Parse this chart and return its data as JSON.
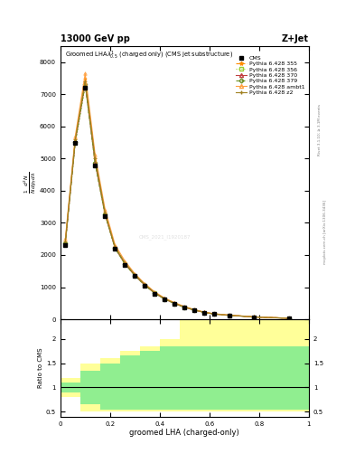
{
  "title_top": "13000 GeV pp",
  "title_right": "Z+Jet",
  "plot_title": "Groomed LHA$\\lambda^{1}_{0.5}$ (charged only) (CMS jet substructure)",
  "xlabel": "groomed LHA (charged-only)",
  "ylabel_main": "$\\frac{1}{\\sigma}\\frac{d\\sigma}{d\\lambda}$",
  "ylabel_ratio": "Ratio to CMS",
  "right_label1": "Rivet 3.1.10; ≥ 3.1M events",
  "right_label2": "mcplots.cern.ch [arXiv:1306.3436]",
  "watermark": "CMS_2021_I1920187",
  "x_bins": [
    0.0,
    0.04,
    0.08,
    0.12,
    0.16,
    0.2,
    0.24,
    0.28,
    0.32,
    0.36,
    0.4,
    0.44,
    0.48,
    0.52,
    0.56,
    0.6,
    0.64,
    0.72,
    0.84,
    1.0
  ],
  "cms_y": [
    2300,
    5500,
    7200,
    4800,
    3200,
    2200,
    1700,
    1350,
    1050,
    800,
    620,
    480,
    370,
    280,
    210,
    160,
    120,
    70,
    30
  ],
  "p355_y": [
    2400,
    5600,
    7500,
    5000,
    3300,
    2250,
    1750,
    1380,
    1080,
    830,
    640,
    500,
    380,
    290,
    215,
    165,
    125,
    72,
    31
  ],
  "p356_y": [
    2350,
    5480,
    7280,
    4840,
    3240,
    2210,
    1710,
    1355,
    1055,
    805,
    622,
    482,
    370,
    281,
    211,
    161,
    121,
    69,
    29
  ],
  "p370_y": [
    2380,
    5540,
    7340,
    4890,
    3270,
    2225,
    1725,
    1362,
    1062,
    812,
    628,
    488,
    374,
    284,
    212,
    162,
    122,
    70,
    30
  ],
  "p379_y": [
    2360,
    5510,
    7310,
    4860,
    3255,
    2218,
    1718,
    1358,
    1058,
    808,
    625,
    485,
    371,
    282,
    211,
    161,
    121,
    69,
    29
  ],
  "pambt1_y": [
    2500,
    5700,
    7650,
    5120,
    3420,
    2320,
    1810,
    1415,
    1105,
    850,
    658,
    515,
    395,
    300,
    222,
    170,
    130,
    75,
    33
  ],
  "pz2_y": [
    2430,
    5600,
    7420,
    5000,
    3310,
    2250,
    1755,
    1385,
    1082,
    828,
    638,
    498,
    380,
    289,
    215,
    164,
    124,
    71,
    30
  ],
  "ratio_x_edges": [
    0.0,
    0.08,
    0.16,
    0.24,
    0.32,
    0.4,
    0.48,
    0.56,
    1.0
  ],
  "ratio_yellow_upper": [
    1.2,
    1.5,
    1.6,
    1.75,
    1.85,
    2.0,
    2.4,
    2.4
  ],
  "ratio_yellow_lower": [
    0.8,
    0.5,
    0.5,
    0.5,
    0.5,
    0.5,
    0.5,
    0.5
  ],
  "ratio_green_upper": [
    1.1,
    1.35,
    1.5,
    1.65,
    1.75,
    1.85,
    1.85,
    1.85
  ],
  "ratio_green_lower": [
    0.9,
    0.65,
    0.55,
    0.55,
    0.55,
    0.55,
    0.55,
    0.55
  ],
  "color_355": "#FF8C00",
  "color_356": "#9ACD32",
  "color_370": "#C04040",
  "color_379": "#6B8E23",
  "color_ambt1": "#FFA040",
  "color_z2": "#A08020",
  "ylim_main": [
    0,
    8500
  ],
  "ylim_ratio": [
    0.4,
    2.4
  ],
  "yticks_main": [
    0,
    1000,
    2000,
    3000,
    4000,
    5000,
    6000,
    7000,
    8000
  ],
  "ytick_labels_main": [
    "0",
    "1000",
    "2000",
    "3000",
    "4000",
    "5000",
    "6000",
    "7000",
    "8000"
  ]
}
